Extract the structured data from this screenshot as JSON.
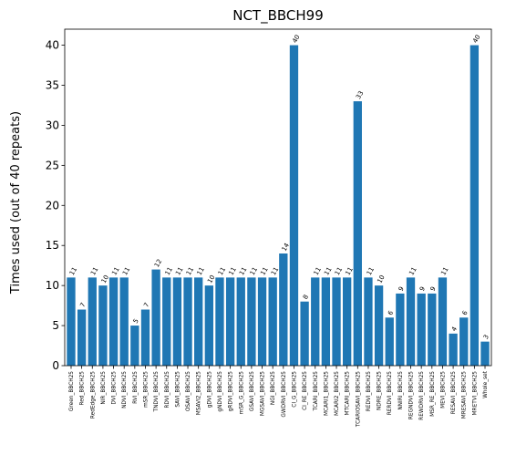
{
  "chart_data": {
    "type": "bar",
    "title": "NCT_BBCH99",
    "xlabel": "",
    "ylabel": "Times used (out of 40 repeats)",
    "ylim": [
      0,
      42
    ],
    "yticks": [
      0,
      5,
      10,
      15,
      20,
      25,
      30,
      35,
      40
    ],
    "grid": false,
    "legend": "none",
    "bar_color": "#1f77b4",
    "categories": [
      "Green_BBCH25",
      "Red_BBCH25",
      "RedEdge_BBCH25",
      "NIR_BBCH25",
      "DVI_BBCH25",
      "NDVI_BBCH25",
      "RVI_BBCH25",
      "mSR_BBCH25",
      "TNDVI_BBCH25",
      "RDVI_BBCH25",
      "SAVI_BBCH25",
      "OSAVI_BBCH25",
      "MSAVI2_BBCH25",
      "gDVI_BBCH25",
      "gNDVI_BBCH25",
      "gRDVI_BBCH25",
      "mSR_G_BBCH25",
      "GSAVI_BBCH25",
      "MGSAVI_BBCH25",
      "NGI_BBCH25",
      "GWDRVI_BBCH25",
      "CI_G_BBCH25",
      "CI_RE_BBCH25",
      "TCARI_BBCH25",
      "MCARI1_BBCH25",
      "MCARI2_BBCH25",
      "MTCARI_BBCH25",
      "TCARIOSAVI_BBCH25",
      "REDVI_BBCH25",
      "NDRE_BBCH25",
      "RERDVI_BBCH25",
      "NNIRI_BBCH25",
      "REGNDVI_BBCH25",
      "REWDRVI_BBCH25",
      "MSR_RE_BBCH25",
      "MEVI_BBCH25",
      "RESAVI_BBCH25",
      "MRESAVI_BBCH25",
      "MRETVI_BBCH25",
      "Whole_set"
    ],
    "values": [
      11,
      7,
      11,
      10,
      11,
      11,
      5,
      7,
      12,
      11,
      11,
      11,
      11,
      10,
      11,
      11,
      11,
      11,
      11,
      11,
      14,
      40,
      8,
      11,
      11,
      11,
      11,
      33,
      11,
      10,
      6,
      9,
      11,
      9,
      9,
      11,
      4,
      6,
      40,
      3
    ]
  }
}
